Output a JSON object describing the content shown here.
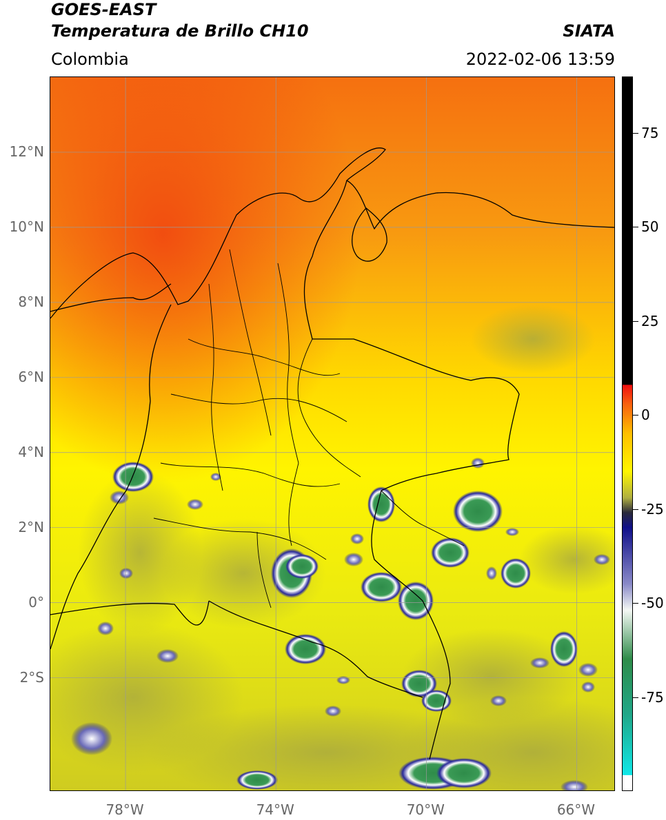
{
  "header": {
    "satellite": "GOES-EAST",
    "product": "Temperatura de Brillo CH10",
    "organization": "SIATA",
    "region": "Colombia",
    "datetime": "2022-02-06 13:59"
  },
  "map": {
    "lon_range": [
      -80,
      -65
    ],
    "lat_range": [
      -5,
      14
    ],
    "lat_labels": [
      "12°N",
      "10°N",
      "8°N",
      "6°N",
      "4°N",
      "2°N",
      "0°",
      "2°S"
    ],
    "lat_values": [
      12,
      10,
      8,
      6,
      4,
      2,
      0,
      -2
    ],
    "lon_labels": [
      "78°W",
      "74°W",
      "70°W",
      "66°W"
    ],
    "lon_values": [
      -78,
      -74,
      -70,
      -66
    ],
    "gridlines": true,
    "colors": {
      "warm_red": "#f04a10",
      "orange": "#f8a010",
      "yellow": "#fff600",
      "olive": "#c9c820",
      "navy": "#1a1a8a",
      "white": "#ffffff",
      "green": "#2f8c4a",
      "border": "#000000",
      "grid": "#9a9a9a"
    }
  },
  "colorbar": {
    "range": [
      -100,
      90
    ],
    "tick_labels": [
      "75",
      "50",
      "25",
      "0",
      "-25",
      "-50",
      "-75"
    ],
    "tick_values": [
      75,
      50,
      25,
      0,
      -25,
      -50,
      -75
    ],
    "stops": [
      {
        "v": -100,
        "c": "#ffffff"
      },
      {
        "v": -96,
        "c": "#ffffff"
      },
      {
        "v": -95.9,
        "c": "#10e8e8"
      },
      {
        "v": -80,
        "c": "#20a88a"
      },
      {
        "v": -65,
        "c": "#2f8c4a"
      },
      {
        "v": -52,
        "c": "#f4f8f4"
      },
      {
        "v": -45,
        "c": "#8a8ac8"
      },
      {
        "v": -30,
        "c": "#10108a"
      },
      {
        "v": -26,
        "c": "#2a2a3a"
      },
      {
        "v": -22,
        "c": "#b0b040"
      },
      {
        "v": -15,
        "c": "#fff600"
      },
      {
        "v": -5,
        "c": "#ffc000"
      },
      {
        "v": 3,
        "c": "#f86010"
      },
      {
        "v": 8,
        "c": "#f01010"
      },
      {
        "v": 8.1,
        "c": "#000000"
      },
      {
        "v": 90,
        "c": "#000000"
      }
    ]
  }
}
